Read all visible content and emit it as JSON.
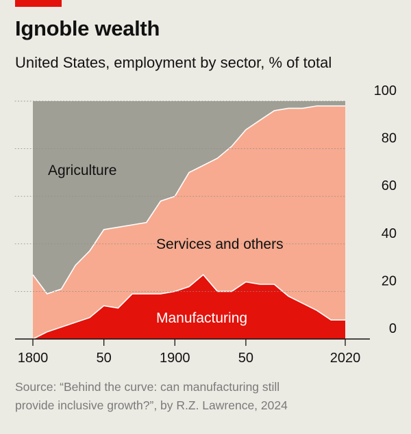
{
  "header": {
    "title": "Ignoble wealth",
    "subtitle": "United States, employment by sector, % of total"
  },
  "source": {
    "line1": "Source: “Behind the curve: can manufacturing still",
    "line2": "provide inclusive growth?”, by R.Z. Lawrence, 2024"
  },
  "colors": {
    "agriculture": "#a09f96",
    "services": "#f7aa8f",
    "manufacturing": "#e3120b",
    "brand": "#e3120b"
  },
  "chart_data": {
    "type": "area",
    "stacked": true,
    "x": [
      1800,
      1810,
      1820,
      1830,
      1840,
      1850,
      1860,
      1870,
      1880,
      1890,
      1900,
      1910,
      1920,
      1930,
      1940,
      1950,
      1960,
      1970,
      1980,
      1990,
      2000,
      2010,
      2020
    ],
    "series": [
      {
        "name": "Manufacturing",
        "values": [
          0,
          3,
          5,
          7,
          9,
          14,
          13,
          19,
          19,
          19,
          20,
          22,
          27,
          20,
          20,
          24,
          23,
          23,
          18,
          15,
          12,
          8,
          8
        ]
      },
      {
        "name": "Services and others",
        "values": [
          27,
          16,
          16,
          24,
          28,
          32,
          34,
          29,
          30,
          39,
          40,
          48,
          46,
          56,
          61,
          64,
          69,
          73,
          79,
          82,
          86,
          90,
          90
        ]
      },
      {
        "name": "Agriculture",
        "values": [
          73,
          81,
          79,
          69,
          63,
          54,
          53,
          52,
          51,
          42,
          40,
          30,
          27,
          24,
          19,
          12,
          8,
          4,
          3,
          3,
          2,
          2,
          2
        ]
      }
    ],
    "series_labels": [
      "Manufacturing",
      "Services and others",
      "Agriculture"
    ],
    "x_ticks": [
      "1800",
      "50",
      "1900",
      "50",
      "2020"
    ],
    "x_tick_values": [
      1800,
      1850,
      1900,
      1950,
      2020
    ],
    "y_ticks": [
      "0",
      "20",
      "40",
      "60",
      "80",
      "100"
    ],
    "y_tick_values": [
      0,
      20,
      40,
      60,
      80,
      100
    ],
    "ylim": [
      0,
      100
    ],
    "xlim": [
      1800,
      2020
    ],
    "title": "Ignoble wealth",
    "ylabel": "% of total",
    "xlabel": ""
  }
}
